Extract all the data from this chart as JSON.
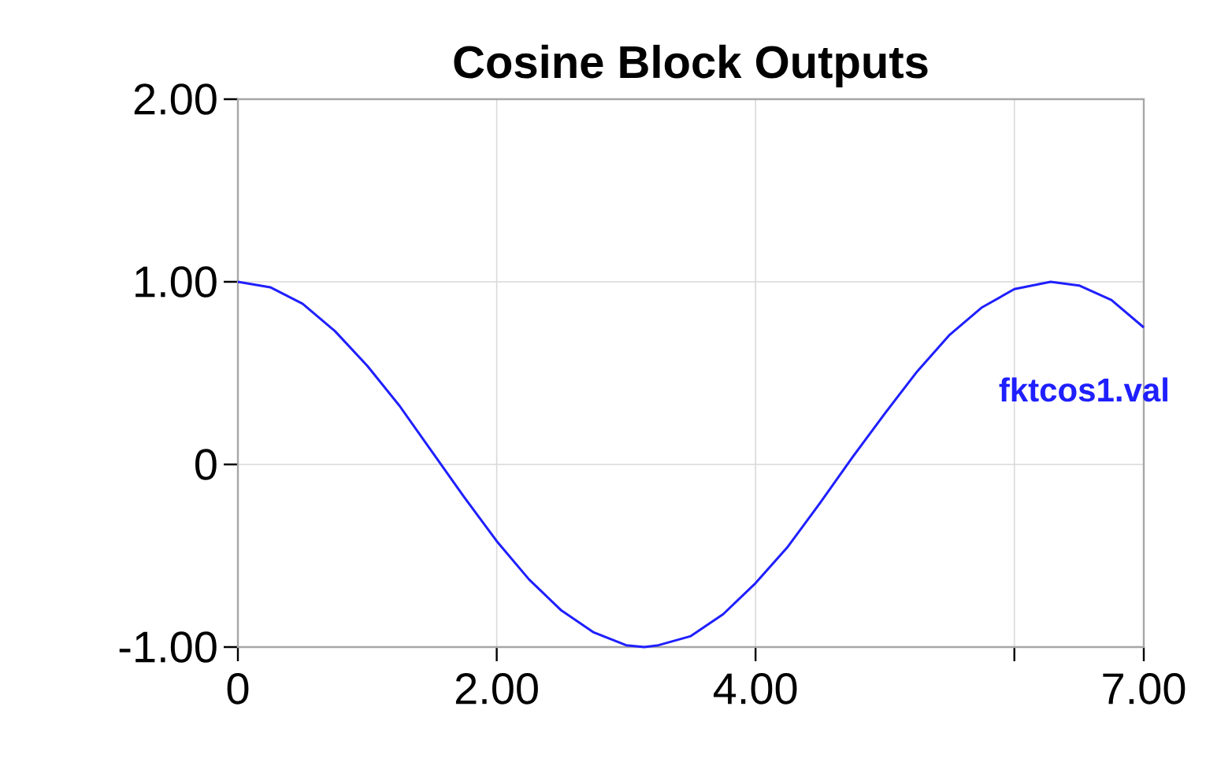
{
  "chart_data": {
    "type": "line",
    "title": "Cosine Block Outputs",
    "x": [
      0,
      0.25,
      0.5,
      0.75,
      1,
      1.25,
      1.5,
      1.75,
      2,
      2.25,
      2.5,
      2.75,
      3,
      3.14,
      3.25,
      3.5,
      3.75,
      4,
      4.25,
      4.5,
      4.75,
      5,
      5.25,
      5.5,
      5.75,
      6,
      6.28,
      6.5,
      6.75,
      7
    ],
    "series": [
      {
        "name": "fktcos1.val",
        "color": "#1f1fff",
        "values": [
          1,
          0.97,
          0.88,
          0.73,
          0.54,
          0.32,
          0.07,
          -0.18,
          -0.42,
          -0.63,
          -0.8,
          -0.92,
          -0.99,
          -1,
          -0.99,
          -0.94,
          -0.82,
          -0.65,
          -0.45,
          -0.21,
          0.04,
          0.28,
          0.51,
          0.71,
          0.86,
          0.96,
          1,
          0.98,
          0.9,
          0.75
        ]
      }
    ],
    "xlim": [
      0,
      7
    ],
    "ylim": [
      -1,
      2
    ],
    "xticks": [
      0,
      {
        "value": 2,
        "label": "2.00"
      },
      {
        "value": 4,
        "label": "4.00"
      },
      {
        "value": 6,
        "label": null
      },
      {
        "value": 7,
        "label": "7.00"
      }
    ],
    "yticks": [
      {
        "value": -1,
        "label": "-1.00"
      },
      0,
      {
        "value": 1,
        "label": "1.00"
      },
      {
        "value": 2,
        "label": "2.00"
      }
    ],
    "grid": true,
    "legend": false,
    "marker": "none",
    "line_style": "solid"
  }
}
